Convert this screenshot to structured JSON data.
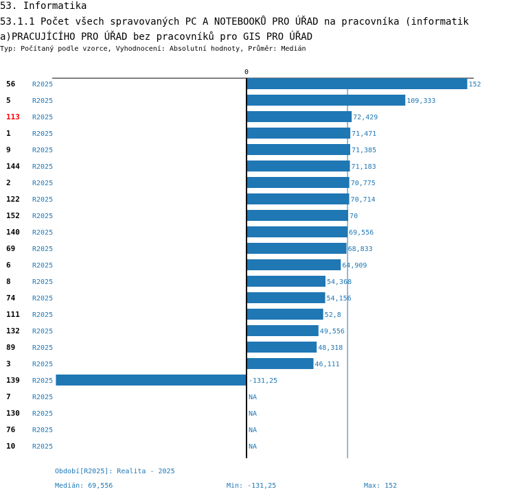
{
  "header": {
    "section": "53. Informatika",
    "title": "53.1.1 Počet všech spravovaných PC A NOTEBOOKŮ PRO ÚŘAD na pracovníka (informatik a)PRACUJÍCÍHO PRO ÚŘAD bez pracovníků pro GIS PRO ÚŘAD",
    "subtitle": "Typ: Počítaný podle vzorce, Vyhodnocení: Absolutní hodnoty, Průměr: Medián"
  },
  "chart_data": {
    "type": "bar",
    "orientation": "horizontal",
    "zero_label": "0",
    "median": 69.556,
    "xlim": [
      -131.25,
      152
    ],
    "highlight_color": "#ff0000",
    "bar_color": "#1f77b4",
    "rows": [
      {
        "id": "56",
        "period": "R2025",
        "value": 152,
        "label": "152"
      },
      {
        "id": "5",
        "period": "R2025",
        "value": 109.333,
        "label": "109,333"
      },
      {
        "id": "113",
        "period": "R2025",
        "value": 72.429,
        "label": "72,429",
        "highlight": true
      },
      {
        "id": "1",
        "period": "R2025",
        "value": 71.471,
        "label": "71,471"
      },
      {
        "id": "9",
        "period": "R2025",
        "value": 71.385,
        "label": "71,385"
      },
      {
        "id": "144",
        "period": "R2025",
        "value": 71.183,
        "label": "71,183"
      },
      {
        "id": "2",
        "period": "R2025",
        "value": 70.775,
        "label": "70,775"
      },
      {
        "id": "122",
        "period": "R2025",
        "value": 70.714,
        "label": "70,714"
      },
      {
        "id": "152",
        "period": "R2025",
        "value": 70,
        "label": "70"
      },
      {
        "id": "140",
        "period": "R2025",
        "value": 69.556,
        "label": "69,556"
      },
      {
        "id": "69",
        "period": "R2025",
        "value": 68.833,
        "label": "68,833"
      },
      {
        "id": "6",
        "period": "R2025",
        "value": 64.909,
        "label": "64,909"
      },
      {
        "id": "8",
        "period": "R2025",
        "value": 54.368,
        "label": "54,368"
      },
      {
        "id": "74",
        "period": "R2025",
        "value": 54.156,
        "label": "54,156"
      },
      {
        "id": "111",
        "period": "R2025",
        "value": 52.8,
        "label": "52,8"
      },
      {
        "id": "132",
        "period": "R2025",
        "value": 49.556,
        "label": "49,556"
      },
      {
        "id": "89",
        "period": "R2025",
        "value": 48.318,
        "label": "48,318"
      },
      {
        "id": "3",
        "period": "R2025",
        "value": 46.111,
        "label": "46,111"
      },
      {
        "id": "139",
        "period": "R2025",
        "value": -131.25,
        "label": "-131,25"
      },
      {
        "id": "7",
        "period": "R2025",
        "value": null,
        "label": "NA"
      },
      {
        "id": "130",
        "period": "R2025",
        "value": null,
        "label": "NA"
      },
      {
        "id": "76",
        "period": "R2025",
        "value": null,
        "label": "NA"
      },
      {
        "id": "10",
        "period": "R2025",
        "value": null,
        "label": "NA"
      }
    ]
  },
  "footer": {
    "period": "Období[R2025]: Realita - 2025",
    "median": "Medián: 69,556",
    "min": "Min: -131,25",
    "max": "Max: 152"
  }
}
